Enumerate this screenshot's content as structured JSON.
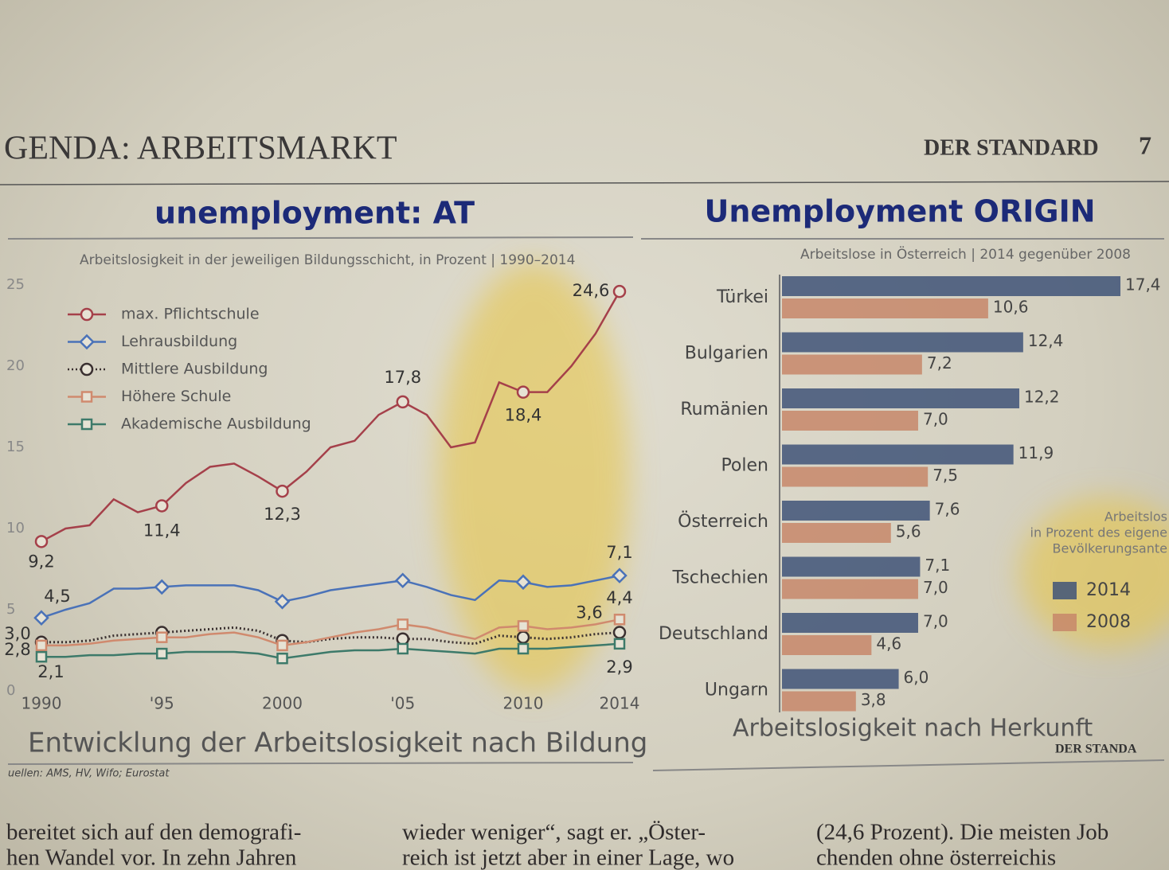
{
  "header": {
    "section": "GENDA: ARBEITSMARKT",
    "paper": "DER STANDARD",
    "page": "7"
  },
  "overlay_titles": [
    "unemployment: AT",
    "Unemployment ORIGIN"
  ],
  "chart_data": [
    {
      "type": "line",
      "title": "Entwicklung der Arbeitslosigkeit nach Bildung",
      "subtitle": "Arbeitslosigkeit in der jeweiligen Bildungsschicht, in Prozent | 1990–2014",
      "source": "uellen: AMS, HV, Wifo; Eurostat",
      "x": [
        1990,
        1991,
        1992,
        1993,
        1994,
        1995,
        1996,
        1997,
        1998,
        1999,
        2000,
        2001,
        2002,
        2003,
        2004,
        2005,
        2006,
        2007,
        2008,
        2009,
        2010,
        2011,
        2012,
        2013,
        2014
      ],
      "xlim": [
        1990,
        2014
      ],
      "xticks": [
        1990,
        {
          "value": 1995,
          "label": "'95"
        },
        2000,
        {
          "value": 2005,
          "label": "'05"
        },
        2010,
        2014
      ],
      "ylim": [
        0,
        25
      ],
      "yticks": [
        0,
        5,
        10,
        15,
        20,
        25
      ],
      "series": [
        {
          "name": "max. Pflichtschule",
          "color": "#a5404a",
          "marker": "circle",
          "line_style": "solid",
          "values": [
            9.2,
            10.0,
            10.2,
            11.8,
            11.0,
            11.4,
            12.8,
            13.8,
            14.0,
            13.2,
            12.3,
            13.5,
            15.0,
            15.4,
            17.0,
            17.8,
            17.0,
            15.0,
            15.3,
            19.0,
            18.4,
            18.4,
            20.0,
            22.0,
            24.6
          ],
          "value_labels": [
            "9,2",
            null,
            null,
            null,
            null,
            "11,4",
            null,
            null,
            null,
            null,
            "12,3",
            null,
            null,
            null,
            null,
            "17,8",
            null,
            null,
            null,
            null,
            "18,4",
            null,
            null,
            null,
            "24,6"
          ]
        },
        {
          "name": "Lehrausbildung",
          "color": "#4a72b8",
          "marker": "diamond",
          "line_style": "solid",
          "values": [
            4.5,
            5.0,
            5.4,
            6.3,
            6.3,
            6.4,
            6.5,
            6.5,
            6.5,
            6.2,
            5.5,
            5.8,
            6.2,
            6.4,
            6.6,
            6.8,
            6.4,
            5.9,
            5.6,
            6.8,
            6.7,
            6.4,
            6.5,
            6.8,
            7.1
          ],
          "value_labels": [
            "4,5",
            null,
            null,
            null,
            null,
            null,
            null,
            null,
            null,
            null,
            null,
            null,
            null,
            null,
            null,
            null,
            null,
            null,
            null,
            null,
            null,
            null,
            null,
            null,
            "7,1"
          ]
        },
        {
          "name": "Mittlere Ausbildung",
          "color": "#3a3030",
          "marker": "circle",
          "line_style": "dotted",
          "values": [
            3.0,
            3.0,
            3.1,
            3.4,
            3.5,
            3.6,
            3.7,
            3.8,
            3.9,
            3.7,
            3.1,
            3.0,
            3.2,
            3.3,
            3.3,
            3.2,
            3.2,
            3.0,
            2.9,
            3.4,
            3.3,
            3.2,
            3.3,
            3.5,
            3.6
          ],
          "value_labels": [
            "3,0",
            null,
            null,
            null,
            null,
            null,
            null,
            null,
            null,
            null,
            null,
            null,
            null,
            null,
            null,
            null,
            null,
            null,
            null,
            null,
            null,
            null,
            null,
            null,
            "3,6"
          ]
        },
        {
          "name": "Höhere Schule",
          "color": "#d08a6e",
          "marker": "square",
          "line_style": "solid",
          "values": [
            2.8,
            2.8,
            2.9,
            3.1,
            3.2,
            3.3,
            3.3,
            3.5,
            3.6,
            3.3,
            2.8,
            3.0,
            3.3,
            3.6,
            3.8,
            4.1,
            3.9,
            3.5,
            3.2,
            3.9,
            4.0,
            3.8,
            3.9,
            4.1,
            4.4
          ],
          "value_labels": [
            "2,8",
            null,
            null,
            null,
            null,
            null,
            null,
            null,
            null,
            null,
            null,
            null,
            null,
            null,
            null,
            null,
            null,
            null,
            null,
            null,
            null,
            null,
            null,
            null,
            "4,4"
          ]
        },
        {
          "name": "Akademische Ausbildung",
          "color": "#3d7a6a",
          "marker": "square",
          "line_style": "solid",
          "values": [
            2.1,
            2.1,
            2.2,
            2.2,
            2.3,
            2.3,
            2.4,
            2.4,
            2.4,
            2.3,
            2.0,
            2.2,
            2.4,
            2.5,
            2.5,
            2.6,
            2.5,
            2.4,
            2.3,
            2.6,
            2.6,
            2.6,
            2.7,
            2.8,
            2.9
          ],
          "value_labels": [
            "2,1",
            null,
            null,
            null,
            null,
            null,
            null,
            null,
            null,
            null,
            null,
            null,
            null,
            null,
            null,
            null,
            null,
            null,
            null,
            null,
            null,
            null,
            null,
            null,
            "2,9"
          ]
        }
      ]
    },
    {
      "type": "hbar",
      "title": "Arbeitslosigkeit nach Herkunft",
      "subtitle": "Arbeitslose in Österreich | 2014 gegenüber 2008",
      "credit": "DER STANDA",
      "legend_title": [
        "Arbeitslos",
        "in Prozent des eigene",
        "Bevölkerungsante"
      ],
      "categories": [
        "Türkei",
        "Bulgarien",
        "Rumänien",
        "Polen",
        "Österreich",
        "Tschechien",
        "Deutschland",
        "Ungarn"
      ],
      "series": [
        {
          "name": "2014",
          "color": "#3f5478",
          "values": [
            17.4,
            12.4,
            12.2,
            11.9,
            7.6,
            7.1,
            7.0,
            6.0
          ],
          "value_labels": [
            "17,4",
            "12,4",
            "12,2",
            "11,9",
            "7,6",
            "7,1",
            "7,0",
            "6,0"
          ]
        },
        {
          "name": "2008",
          "color": "#c7876a",
          "values": [
            10.6,
            7.2,
            7.0,
            7.5,
            5.6,
            7.0,
            4.6,
            3.8
          ],
          "value_labels": [
            "10,6",
            "7,2",
            "7,0",
            "7,5",
            "5,6",
            "7,0",
            "4,6",
            "3,8"
          ]
        }
      ]
    }
  ],
  "body_text": [
    [
      "bereitet sich auf den demografi-",
      "hen Wandel vor. In zehn Jahren"
    ],
    [
      "wieder weniger“, sagt er. „Öster-",
      "reich ist jetzt aber in einer Lage, wo"
    ],
    [
      "(24,6 Prozent). Die meisten Job",
      "chenden ohne österreichis"
    ]
  ]
}
